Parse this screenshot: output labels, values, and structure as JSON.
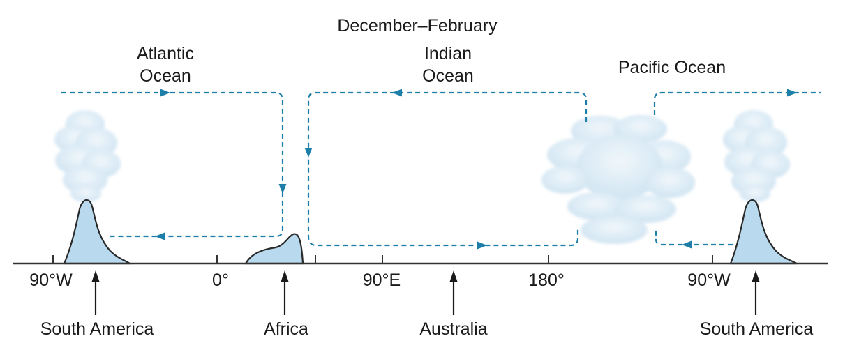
{
  "title": "December–February",
  "oceans": {
    "atlantic": [
      "Atlantic",
      "Ocean"
    ],
    "indian": [
      "Indian",
      "Ocean"
    ],
    "pacific": "Pacific Ocean"
  },
  "longitude_ticks": [
    "90°W",
    "0°",
    "90°E",
    "180°",
    "90°W"
  ],
  "landmasses": [
    "South America",
    "Africa",
    "Australia",
    "South America"
  ],
  "colors": {
    "circulation_arrows": "#1d7fa8",
    "landmass_fill": "#b9d9ee",
    "cloud_fill": "#dcebf5"
  },
  "icons": {
    "cloud": "cloud-icon",
    "circulation": "dashed-arrow"
  }
}
